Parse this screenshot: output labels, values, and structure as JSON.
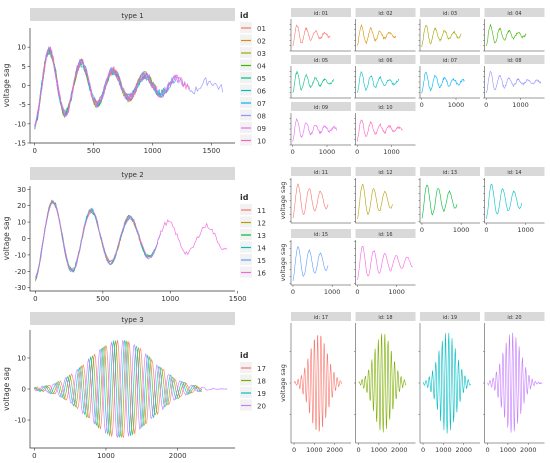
{
  "ylabel": "voltage sag",
  "legend_title": "id",
  "colors": {
    "01": "#F8766D",
    "02": "#D89000",
    "03": "#A3A500",
    "04": "#39B600",
    "05": "#00BF7D",
    "06": "#00BFC4",
    "07": "#00B0F6",
    "08": "#9590FF",
    "09": "#E76BF3",
    "10": "#FF62BC",
    "11": "#F8766D",
    "12": "#B79F00",
    "13": "#00BA38",
    "14": "#00BFC4",
    "15": "#619CFF",
    "16": "#F564E3",
    "17": "#F8766D",
    "18": "#7CAE00",
    "19": "#00BFC4",
    "20": "#C77CFF"
  },
  "chart_data": [
    {
      "type": "line",
      "title": "type 1",
      "ids": [
        "01",
        "02",
        "03",
        "04",
        "05",
        "06",
        "07",
        "08",
        "09",
        "10"
      ],
      "xlim": [
        -40,
        1700
      ],
      "ylim": [
        -15,
        15
      ],
      "xticks": [
        0,
        500,
        1000,
        1500
      ],
      "yticks": [
        -15,
        -10,
        -5,
        0,
        5,
        10
      ],
      "wave": {
        "amp": 11,
        "period": 270,
        "decay": 650,
        "len": 1600
      }
    },
    {
      "type": "line",
      "title": "type 2",
      "ids": [
        "11",
        "12",
        "13",
        "14",
        "15",
        "16"
      ],
      "xlim": [
        -40,
        1480
      ],
      "ylim": [
        -32,
        32
      ],
      "xticks": [
        0,
        500,
        1000,
        1500
      ],
      "yticks": [
        -30,
        -20,
        -10,
        0,
        10,
        20,
        30
      ],
      "wave": {
        "amp": 28,
        "period": 285,
        "decay": 900,
        "len": 1420
      }
    },
    {
      "type": "line",
      "title": "type 3",
      "ids": [
        "17",
        "18",
        "19",
        "20"
      ],
      "xlim": [
        -60,
        2800
      ],
      "ylim": [
        -19,
        19
      ],
      "xticks": [
        0,
        1000,
        2000
      ],
      "yticks": [
        -10,
        0,
        10
      ],
      "wave": {
        "amp": 16,
        "period": 160,
        "len": 2700
      }
    }
  ],
  "facets": [
    {
      "label": "id: 01",
      "id": "01"
    },
    {
      "label": "id: 02",
      "id": "02"
    },
    {
      "label": "id: 03",
      "id": "03"
    },
    {
      "label": "id: 04",
      "id": "04"
    },
    {
      "label": "id: 05",
      "id": "05"
    },
    {
      "label": "id: 06",
      "id": "06"
    },
    {
      "label": "id: 07",
      "id": "07"
    },
    {
      "label": "id: 08",
      "id": "08"
    },
    {
      "label": "id: 09",
      "id": "09"
    },
    {
      "label": "id: 10",
      "id": "10"
    },
    {
      "label": "id: 11",
      "id": "11"
    },
    {
      "label": "id: 12",
      "id": "12"
    },
    {
      "label": "id: 13",
      "id": "13"
    },
    {
      "label": "id: 14",
      "id": "14"
    },
    {
      "label": "id: 15",
      "id": "15"
    },
    {
      "label": "id: 16",
      "id": "16"
    },
    {
      "label": "id: 17",
      "id": "17"
    },
    {
      "label": "id: 18",
      "id": "18"
    },
    {
      "label": "id: 19",
      "id": "19"
    },
    {
      "label": "id: 20",
      "id": "20"
    }
  ],
  "facet_xticks": {
    "group1": [
      "0",
      "1000"
    ],
    "group2": [
      "0",
      "1000"
    ],
    "group3": [
      "0",
      "1000",
      "2000"
    ]
  }
}
